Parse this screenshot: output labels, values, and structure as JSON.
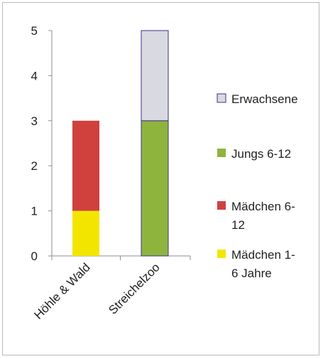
{
  "chart_data": {
    "type": "bar",
    "stacked": true,
    "categories": [
      "Höhle & Wald",
      "Streichelzoo"
    ],
    "series": [
      {
        "name": "Mädchen 1-6 Jahre",
        "legend_lines": [
          "Mädchen 1-",
          "6 Jahre"
        ],
        "values": [
          1,
          0
        ],
        "color": "#f2e600"
      },
      {
        "name": "Mädchen 6-12",
        "legend_lines": [
          "Mädchen 6-",
          "12"
        ],
        "values": [
          2,
          0
        ],
        "color": "#d0413e"
      },
      {
        "name": "Jungs 6-12",
        "legend_lines": [
          "Jungs 6-12"
        ],
        "values": [
          0,
          3
        ],
        "color": "#8eb43e"
      },
      {
        "name": "Erwachsene",
        "legend_lines": [
          "Erwachsene"
        ],
        "values": [
          0,
          2
        ],
        "color": "#d9dae1"
      }
    ],
    "legend_order": [
      "Erwachsene",
      "Jungs 6-12",
      "Mädchen 6-12",
      "Mädchen 1-6 Jahre"
    ],
    "yticks": [
      "0",
      "1",
      "2",
      "3",
      "4",
      "5"
    ],
    "ylim": [
      0,
      5
    ],
    "bar_border_color": "#3f2f8f",
    "grid": false,
    "legend_position": "right"
  }
}
